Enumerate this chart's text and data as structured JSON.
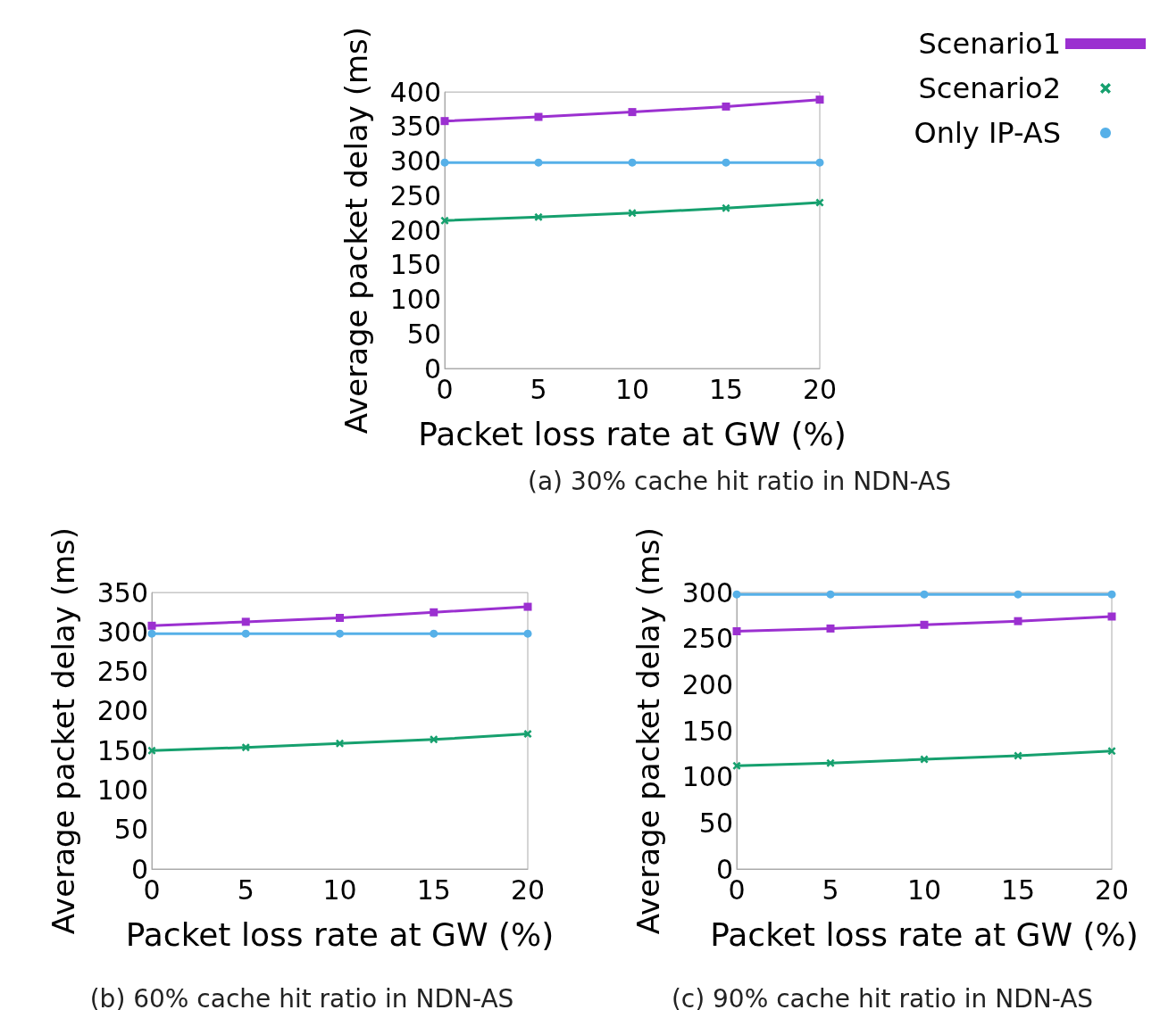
{
  "chart_data": [
    {
      "type": "line",
      "title": "(a) 30% cache hit ratio in NDN-AS",
      "xlabel": "Packet loss rate at GW (%)",
      "ylabel": "Average packet delay (ms)",
      "x": [
        0,
        5,
        10,
        15,
        20
      ],
      "xlim": [
        0,
        20
      ],
      "xticks": [
        0,
        5,
        10,
        15,
        20
      ],
      "ylim": [
        0,
        400
      ],
      "yticks": [
        0,
        50,
        100,
        150,
        200,
        250,
        300,
        350,
        400
      ],
      "grid": false,
      "legend": "top right",
      "line_style": "solid",
      "series": [
        {
          "name": "Scenario1",
          "color": "#9b30d0",
          "marker": "square",
          "values": [
            358,
            364,
            371,
            379,
            389
          ]
        },
        {
          "name": "Scenario2",
          "color": "#16a06e",
          "marker": "cross",
          "values": [
            214,
            219,
            225,
            232,
            240
          ]
        },
        {
          "name": "Only IP-AS",
          "color": "#56b0e8",
          "marker": "circle",
          "values": [
            298,
            298,
            298,
            298,
            298
          ]
        }
      ]
    },
    {
      "type": "line",
      "title": "(b) 60% cache hit ratio in NDN-AS",
      "xlabel": "Packet loss rate at GW (%)",
      "ylabel": "Average packet delay (ms)",
      "x": [
        0,
        5,
        10,
        15,
        20
      ],
      "xlim": [
        0,
        20
      ],
      "xticks": [
        0,
        5,
        10,
        15,
        20
      ],
      "ylim": [
        0,
        350
      ],
      "yticks": [
        0,
        50,
        100,
        150,
        200,
        250,
        300,
        350
      ],
      "grid": false,
      "legend": false,
      "line_style": "solid",
      "series": [
        {
          "color": "#9b30d0",
          "marker": "square",
          "values": [
            308,
            313,
            318,
            325,
            332
          ]
        },
        {
          "color": "#16a06e",
          "marker": "cross",
          "values": [
            150,
            154,
            159,
            164,
            171
          ]
        },
        {
          "color": "#56b0e8",
          "marker": "circle",
          "values": [
            298,
            298,
            298,
            298,
            298
          ]
        }
      ]
    },
    {
      "type": "line",
      "title": "(c) 90% cache hit ratio in NDN-AS",
      "xlabel": "Packet loss rate at GW (%)",
      "ylabel": "Average packet delay (ms)",
      "x": [
        0,
        5,
        10,
        15,
        20
      ],
      "xlim": [
        0,
        20
      ],
      "xticks": [
        0,
        5,
        10,
        15,
        20
      ],
      "ylim": [
        0,
        300
      ],
      "yticks": [
        0,
        50,
        100,
        150,
        200,
        250,
        300
      ],
      "grid": false,
      "legend": false,
      "line_style": "solid",
      "series": [
        {
          "color": "#9b30d0",
          "marker": "square",
          "values": [
            258,
            261,
            265,
            269,
            274
          ]
        },
        {
          "color": "#16a06e",
          "marker": "cross",
          "values": [
            112,
            115,
            119,
            123,
            128
          ]
        },
        {
          "color": "#56b0e8",
          "marker": "circle",
          "values": [
            298,
            298,
            298,
            298,
            298
          ]
        }
      ]
    }
  ]
}
